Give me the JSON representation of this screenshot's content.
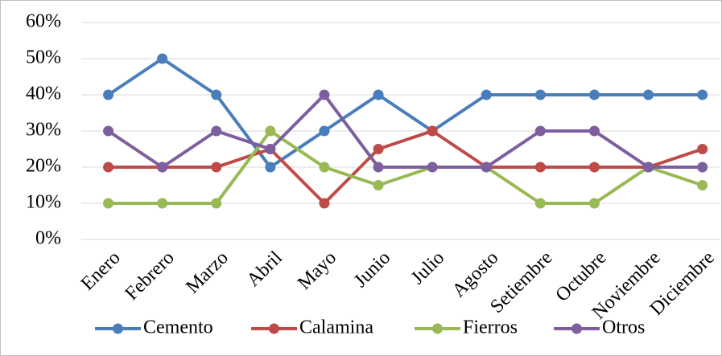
{
  "chart_data": {
    "type": "line",
    "categories": [
      "Enero",
      "Febrero",
      "Marzo",
      "Abril",
      "Mayo",
      "Junio",
      "Julio",
      "Agosto",
      "Setiembre",
      "Octubre",
      "Noviembre",
      "Diciembre"
    ],
    "series": [
      {
        "name": "Cemento",
        "color": "#4a7ebb",
        "values": [
          40,
          50,
          40,
          20,
          30,
          40,
          30,
          40,
          40,
          40,
          40,
          40
        ]
      },
      {
        "name": "Calamina",
        "color": "#be4b48",
        "values": [
          20,
          20,
          20,
          25,
          10,
          25,
          30,
          20,
          20,
          20,
          20,
          25
        ]
      },
      {
        "name": "Fierros",
        "color": "#98b954",
        "values": [
          10,
          10,
          10,
          30,
          20,
          15,
          20,
          20,
          10,
          10,
          20,
          15
        ]
      },
      {
        "name": "Otros",
        "color": "#7d5fa0",
        "values": [
          30,
          20,
          30,
          25,
          40,
          20,
          20,
          20,
          30,
          30,
          20,
          20
        ]
      }
    ],
    "ylim": [
      0,
      60
    ],
    "yticks": [
      {
        "value": 0,
        "label": "0%"
      },
      {
        "value": 10,
        "label": "10%"
      },
      {
        "value": 20,
        "label": "20%"
      },
      {
        "value": 30,
        "label": "30%"
      },
      {
        "value": 40,
        "label": "40%"
      },
      {
        "value": 50,
        "label": "50%"
      },
      {
        "value": 60,
        "label": "60%"
      }
    ],
    "grid": true,
    "legend": "bottom"
  }
}
